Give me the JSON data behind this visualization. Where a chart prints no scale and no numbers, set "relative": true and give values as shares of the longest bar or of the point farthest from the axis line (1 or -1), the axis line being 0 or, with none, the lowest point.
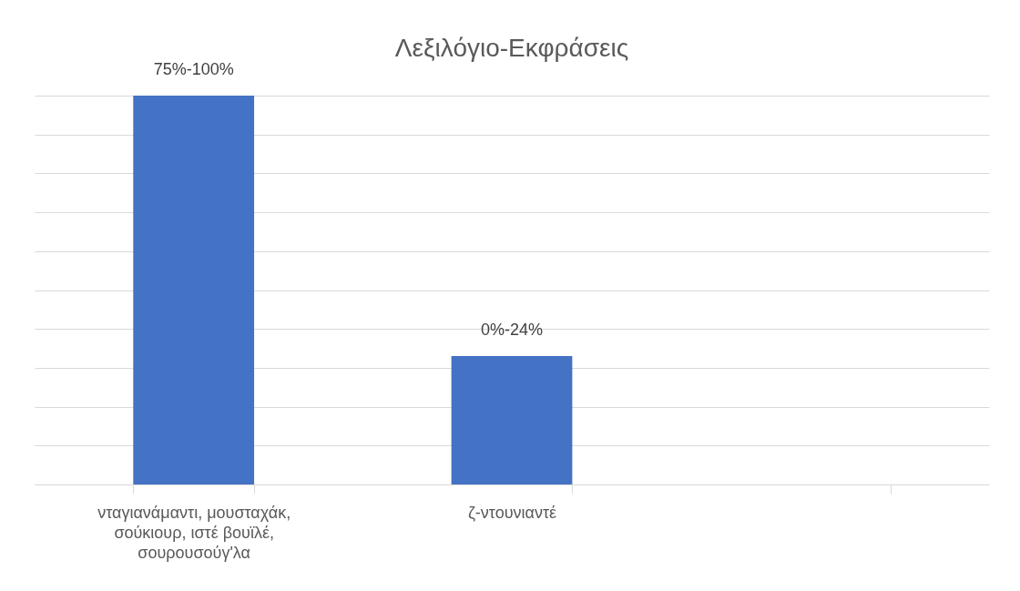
{
  "chart_data": {
    "type": "bar",
    "title": "Λεξιλόγιο-Εκφράσεις",
    "relative": true,
    "categories": [
      "νταγιανάμαντι, μουσταχάκ, σούκιουρ, ιστέ βουϊλέ, σουρουσούγ'λα",
      "ζ-ντουνιαντέ",
      null
    ],
    "values": [
      1,
      0.33,
      null
    ],
    "color": "#4472c4",
    "grid": "y",
    "annotations": [
      {
        "text": "75%-100%",
        "x": "νταγιανάμαντι, μουσταχάκ, σούκιουρ, ιστέ βουϊλέ, σουρουσούγ'λα",
        "y": 1
      },
      {
        "text": "0%-24%",
        "x": "ζ-ντουνιαντέ",
        "y": 0.33
      }
    ]
  }
}
